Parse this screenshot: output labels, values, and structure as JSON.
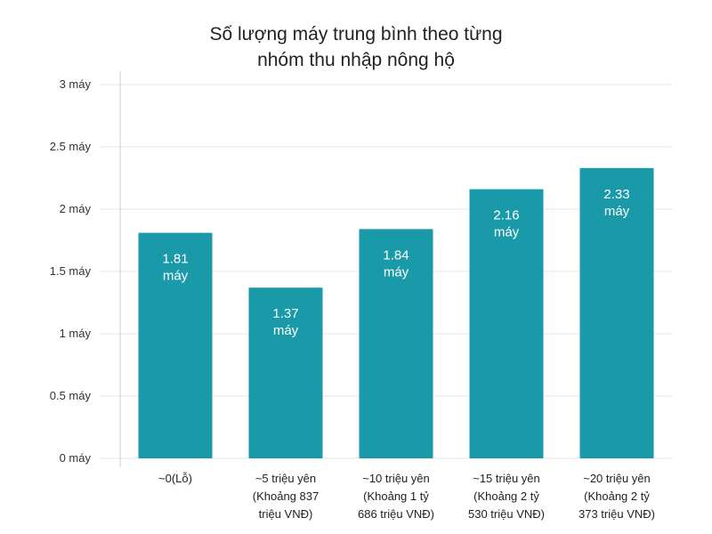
{
  "chart_data": {
    "type": "bar",
    "title": [
      "Số lượng máy trung bình theo từng",
      "nhóm thu nhập nông hộ"
    ],
    "categories": [
      [
        "~0(Lỗ)"
      ],
      [
        "~5 triệu yên",
        "(Khoảng 837",
        "triệu VNĐ)"
      ],
      [
        "~10 triệu yên",
        "(Khoảng 1 tỷ",
        "686 triệu VNĐ)"
      ],
      [
        "~15 triệu yên",
        "(Khoảng 2 tỷ",
        "530 triệu VNĐ)"
      ],
      [
        "~20 triệu yên",
        "(Khoảng 2 tỷ",
        "373 triệu VNĐ)"
      ]
    ],
    "values": [
      1.81,
      1.37,
      1.84,
      2.16,
      2.33
    ],
    "data_labels": [
      [
        "1.81",
        "máy"
      ],
      [
        "1.37",
        "máy"
      ],
      [
        "1.84",
        "máy"
      ],
      [
        "2.16",
        "máy"
      ],
      [
        "2.33",
        "máy"
      ]
    ],
    "ylim": [
      0,
      3
    ],
    "yticks": [
      {
        "value": 0,
        "label": "0 máy"
      },
      {
        "value": 0.5,
        "label": "0.5 máy"
      },
      {
        "value": 1,
        "label": "1 máy"
      },
      {
        "value": 1.5,
        "label": "1.5 máy"
      },
      {
        "value": 2,
        "label": "2 máy"
      },
      {
        "value": 2.5,
        "label": "2.5 máy"
      },
      {
        "value": 3,
        "label": "3 máy"
      }
    ],
    "xlabel": "",
    "ylabel": "",
    "grid": true,
    "bar_color": "#1a9aa8"
  }
}
